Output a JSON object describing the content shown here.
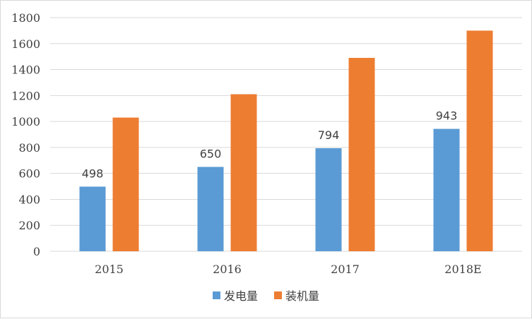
{
  "chart_data": {
    "type": "bar",
    "title": "",
    "xlabel": "",
    "ylabel": "",
    "categories": [
      "2015",
      "2016",
      "2017",
      "2018E"
    ],
    "ylim": [
      0,
      1800
    ],
    "yticks": [
      0,
      200,
      400,
      600,
      800,
      1000,
      1200,
      1400,
      1600,
      1800
    ],
    "grid": true,
    "legend_position": "bottom",
    "series": [
      {
        "name": "发电量",
        "color": "#5b9bd5",
        "values": [
          498,
          650,
          794,
          943
        ],
        "show_labels": true
      },
      {
        "name": "装机量",
        "color": "#ed7d31",
        "values": [
          1030,
          1210,
          1490,
          1700
        ],
        "show_labels": false
      }
    ]
  }
}
